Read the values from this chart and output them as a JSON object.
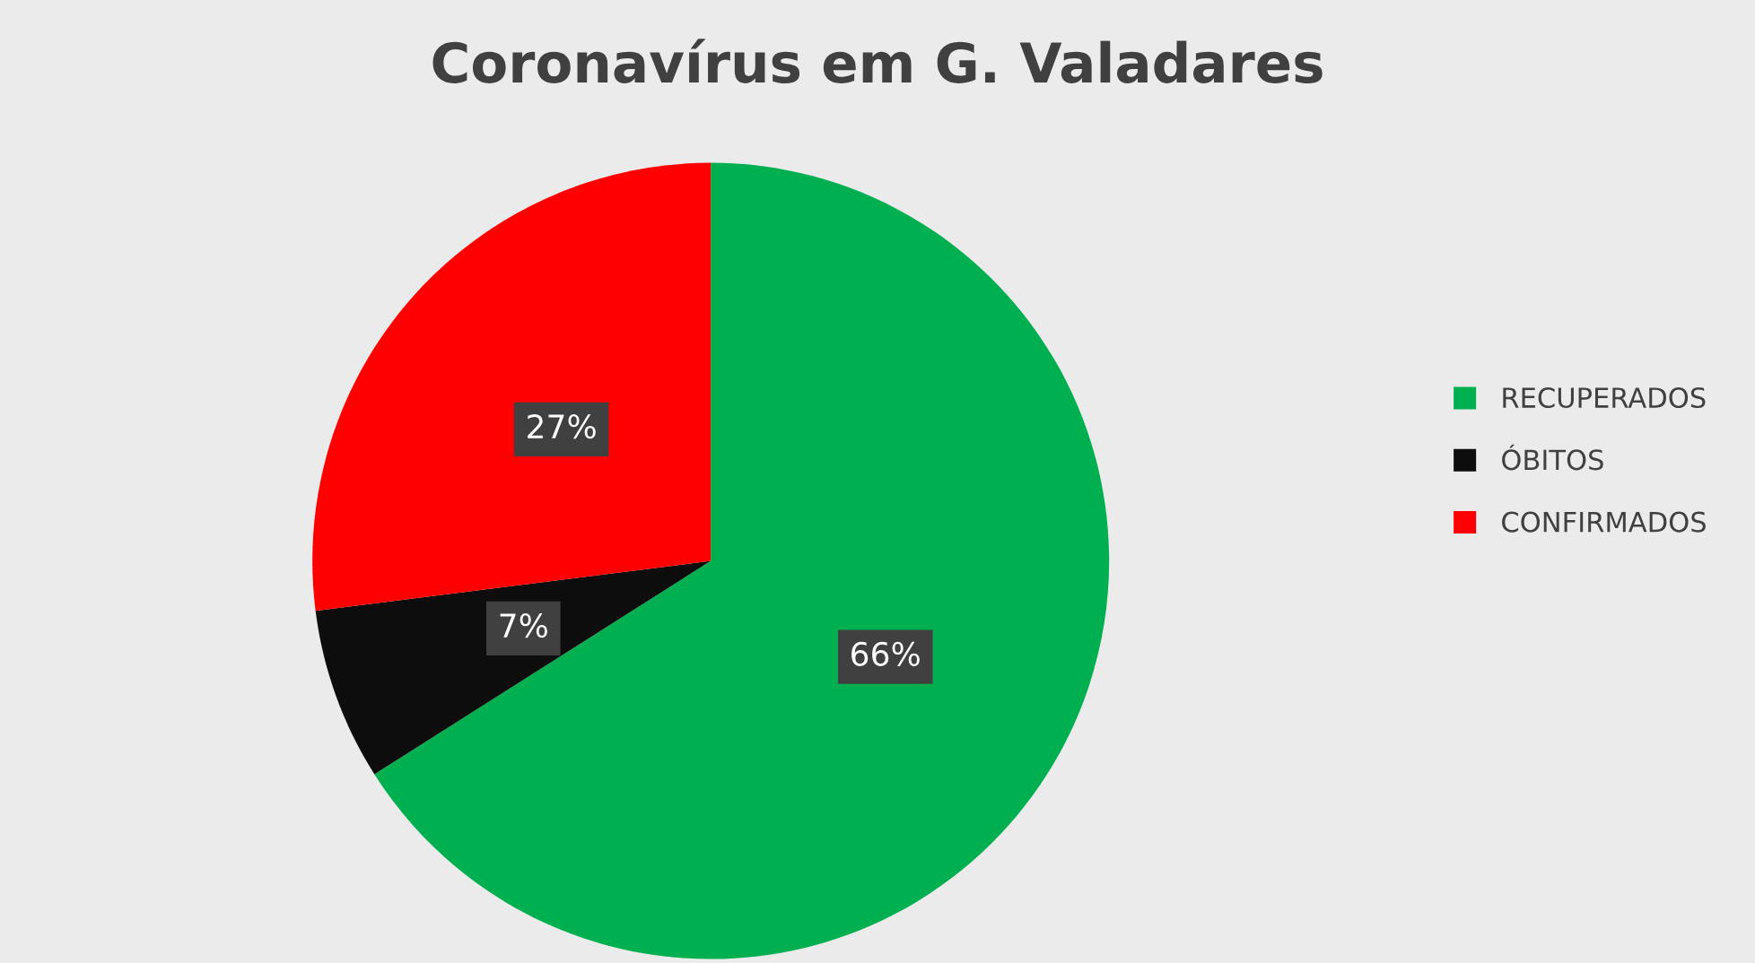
{
  "chart_data": {
    "type": "pie",
    "title": "Coronavírus em G. Valadares",
    "categories": [
      "RECUPERADOS",
      "ÓBITOS",
      "CONFIRMADOS"
    ],
    "values": [
      66,
      7,
      27
    ],
    "colors": [
      "#00b050",
      "#0d0d0d",
      "#ff0000"
    ],
    "value_labels": [
      "66%",
      "7%",
      "27%"
    ],
    "legend": "right"
  }
}
